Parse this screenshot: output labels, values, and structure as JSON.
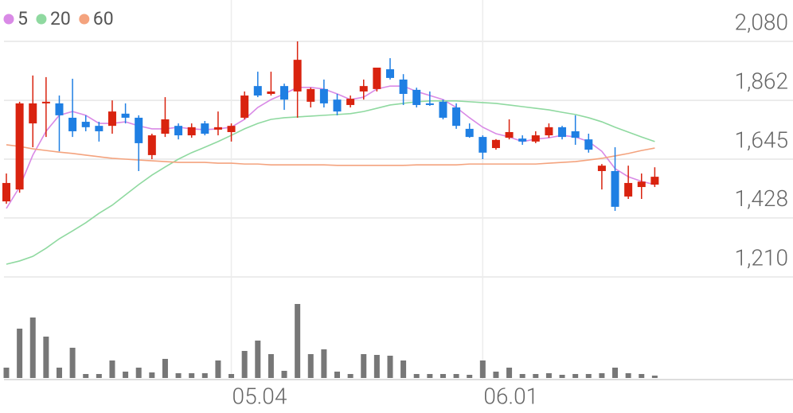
{
  "chart_data": {
    "type": "candlestick",
    "categories": [
      null,
      null,
      null,
      null,
      null,
      null,
      null,
      null,
      null,
      null,
      null,
      null,
      null,
      null,
      null,
      null,
      null,
      "05.04",
      null,
      null,
      null,
      null,
      null,
      null,
      null,
      null,
      null,
      null,
      null,
      null,
      null,
      null,
      null,
      null,
      null,
      null,
      "06.01",
      null,
      null,
      null,
      null,
      null,
      null,
      null,
      null,
      null,
      null,
      null,
      null,
      null
    ],
    "open": [
      1489,
      1533,
      1777,
      1851,
      1851,
      1798,
      1783,
      1768,
      1768,
      1813,
      1798,
      1660,
      1739,
      1768,
      1733,
      1777,
      1754,
      1745,
      1798,
      1915,
      1886,
      1915,
      1895,
      1857,
      1904,
      1865,
      1845,
      1895,
      1904,
      1977,
      1939,
      1901,
      1851,
      1857,
      1836,
      1757,
      1727,
      1686,
      1724,
      1721,
      1710,
      1733,
      1763,
      1748,
      1718,
      1601,
      1601,
      1507,
      1542,
      1551
    ],
    "high": [
      1592,
      1857,
      1954,
      1948,
      1880,
      1942,
      1807,
      1783,
      1862,
      1851,
      1807,
      1739,
      1874,
      1777,
      1777,
      1786,
      1821,
      1777,
      1895,
      1968,
      1968,
      1924,
      2080,
      1909,
      1939,
      1886,
      1880,
      1939,
      1983,
      2018,
      1959,
      1909,
      1895,
      1865,
      1851,
      1777,
      1733,
      1719,
      1792,
      1733,
      1748,
      1777,
      1768,
      1807,
      1739,
      1627,
      1689,
      1621,
      1592,
      1615
    ],
    "low": [
      1480,
      1521,
      1689,
      1727,
      1674,
      1727,
      1748,
      1710,
      1739,
      1777,
      1601,
      1645,
      1727,
      1718,
      1724,
      1733,
      1733,
      1710,
      1792,
      1874,
      1880,
      1827,
      1798,
      1836,
      1836,
      1807,
      1836,
      1865,
      1895,
      1939,
      1845,
      1836,
      1842,
      1792,
      1757,
      1724,
      1645,
      1680,
      1718,
      1698,
      1704,
      1724,
      1718,
      1698,
      1669,
      1533,
      1454,
      1498,
      1498,
      1542
    ],
    "close": [
      1557,
      1851,
      1851,
      1857,
      1807,
      1748,
      1763,
      1748,
      1821,
      1798,
      1704,
      1733,
      1792,
      1733,
      1763,
      1739,
      1763,
      1768,
      1880,
      1880,
      1895,
      1865,
      2012,
      1904,
      1851,
      1821,
      1868,
      1915,
      1983,
      1945,
      1886,
      1845,
      1845,
      1798,
      1768,
      1727,
      1669,
      1716,
      1745,
      1710,
      1733,
      1763,
      1727,
      1724,
      1680,
      1621,
      1469,
      1557,
      1562,
      1580
    ],
    "volume": [
      13,
      62,
      76,
      52,
      13,
      38,
      5,
      5,
      22,
      8,
      13,
      7,
      24,
      6,
      6,
      6,
      22,
      5,
      34,
      47,
      30,
      9,
      93,
      30,
      36,
      8,
      5,
      30,
      29,
      28,
      22,
      5,
      5,
      5,
      5,
      4,
      22,
      8,
      13,
      5,
      5,
      6,
      4,
      5,
      5,
      6,
      13,
      6,
      5,
      3
    ],
    "series": [
      {
        "name": "5",
        "color": "#d98ae6",
        "values": [
          1463,
          1542,
          1660,
          1748,
          1807,
          1821,
          1807,
          1777,
          1777,
          1783,
          1768,
          1757,
          1757,
          1763,
          1757,
          1754,
          1757,
          1763,
          1792,
          1836,
          1865,
          1886,
          1910,
          1910,
          1904,
          1886,
          1865,
          1874,
          1904,
          1915,
          1915,
          1895,
          1880,
          1865,
          1836,
          1798,
          1763,
          1739,
          1727,
          1710,
          1719,
          1724,
          1733,
          1727,
          1710,
          1674,
          1610,
          1580,
          1563,
          1551
        ]
      },
      {
        "name": "20",
        "color": "#8fd9a0",
        "values": [
          1257,
          1269,
          1286,
          1316,
          1351,
          1380,
          1410,
          1445,
          1475,
          1513,
          1551,
          1586,
          1616,
          1645,
          1669,
          1689,
          1710,
          1733,
          1757,
          1777,
          1792,
          1798,
          1801,
          1804,
          1807,
          1810,
          1813,
          1821,
          1833,
          1845,
          1851,
          1857,
          1860,
          1860,
          1860,
          1857,
          1854,
          1851,
          1845,
          1839,
          1833,
          1827,
          1818,
          1810,
          1798,
          1783,
          1763,
          1745,
          1727,
          1710
        ]
      },
      {
        "name": "60",
        "color": "#f4a37e",
        "values": [
          1698,
          1692,
          1683,
          1677,
          1671,
          1666,
          1660,
          1654,
          1648,
          1645,
          1642,
          1639,
          1636,
          1633,
          1633,
          1633,
          1630,
          1630,
          1627,
          1627,
          1624,
          1624,
          1624,
          1624,
          1624,
          1622,
          1622,
          1622,
          1622,
          1622,
          1622,
          1624,
          1624,
          1624,
          1624,
          1627,
          1627,
          1627,
          1627,
          1627,
          1627,
          1630,
          1633,
          1636,
          1642,
          1648,
          1657,
          1666,
          1677,
          1686
        ]
      }
    ],
    "up_color": "#d9230f",
    "down_color": "#1f7fe3",
    "volume_color": "#777777",
    "ylim": [
      1210,
      2080
    ],
    "yticks": [
      {
        "value": 1210,
        "label": "1,210"
      },
      {
        "value": 1428,
        "label": "1,428"
      },
      {
        "value": 1645,
        "label": "1,645"
      },
      {
        "value": 1862,
        "label": "1,862"
      },
      {
        "value": 2080,
        "label": "2,080"
      }
    ],
    "grid": true
  }
}
